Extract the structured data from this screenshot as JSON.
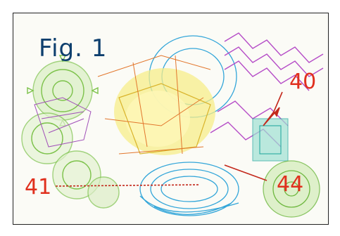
{
  "figure": {
    "title": "Fig. 1",
    "labels": {
      "label_40": "40",
      "label_41": "41",
      "label_44": "44"
    },
    "colors": {
      "title": "#0d3f6e",
      "reference_labels": "#e0301e",
      "green_gear": "#7cc24a",
      "cyan_ring": "#33a6d9",
      "yellow_core": "#f2e34d",
      "magenta_coil": "#b54cc7",
      "teal_block": "#1aa39a"
    }
  }
}
